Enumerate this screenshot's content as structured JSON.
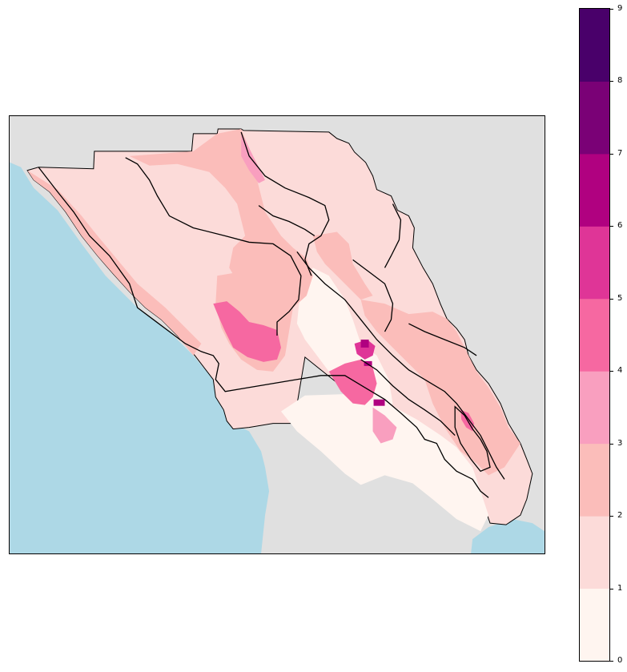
{
  "map": {
    "colors": {
      "ocean": "#add8e6",
      "land_background": "#e0e0e0",
      "boundary": "#000000",
      "class_0_1": "#fff5f0",
      "class_1_2": "#fcdbd9",
      "class_2_3": "#fbbdba",
      "class_3_4": "#f99fbf",
      "class_4_5": "#f668a1",
      "class_5_6": "#df3597",
      "class_6_7": "#b00180",
      "class_7_8": "#7a0176",
      "class_8_9": "#49006a"
    }
  },
  "colorbar": {
    "min": 0,
    "max": 9,
    "ticks": [
      "0",
      "1",
      "2",
      "3",
      "4",
      "5",
      "6",
      "7",
      "8",
      "9"
    ],
    "bands": [
      "#fff5f0",
      "#fcdbd9",
      "#fbbdba",
      "#f99fbf",
      "#f668a1",
      "#df3597",
      "#b00180",
      "#7a0176",
      "#49006a"
    ]
  }
}
